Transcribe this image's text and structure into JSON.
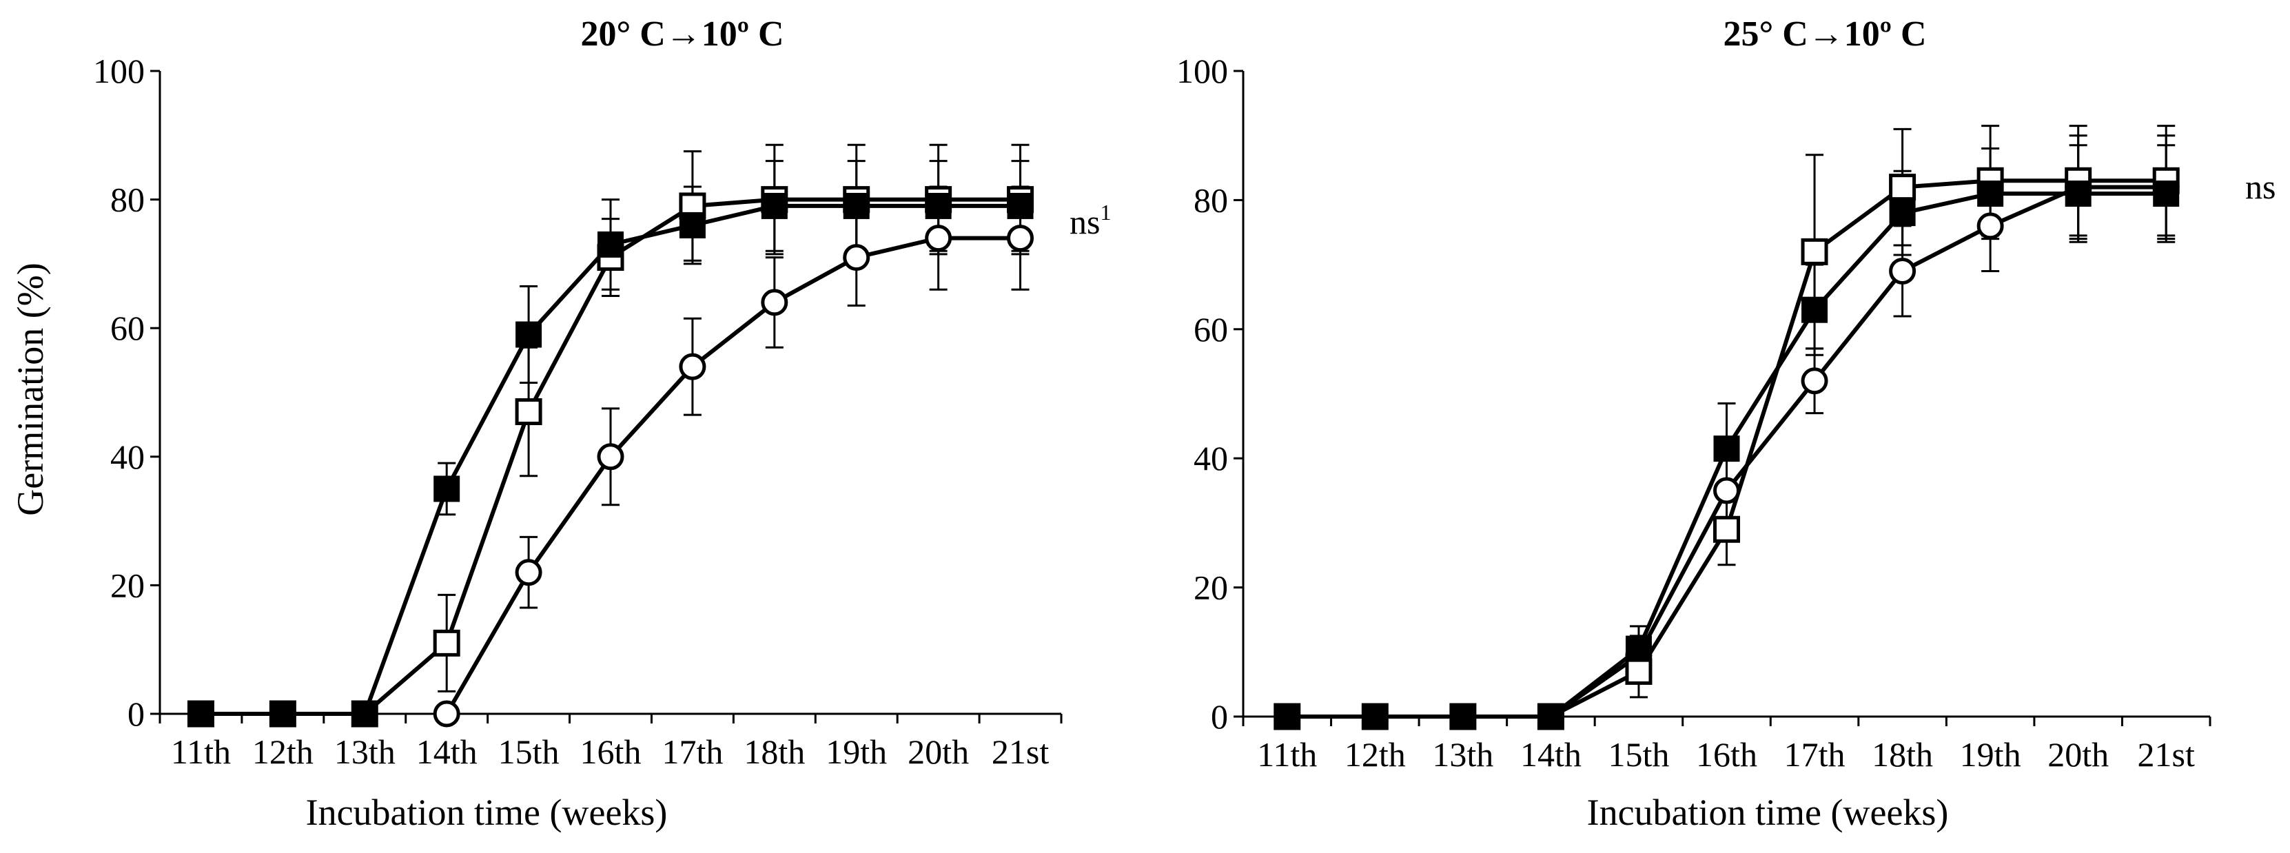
{
  "chart_data": [
    {
      "type": "line",
      "title": "20° C→10º C",
      "xlabel": "Incubation time (weeks)",
      "ylabel": "Germination  (%)",
      "categories": [
        "11th",
        "12th",
        "13th",
        "14th",
        "15th",
        "16th",
        "17th",
        "18th",
        "19th",
        "20th",
        "21st"
      ],
      "ylim": [
        0,
        100
      ],
      "yticks": [
        0,
        20,
        40,
        60,
        80,
        100
      ],
      "annotation": "ns",
      "annotation_superscript": "1",
      "series": [
        {
          "name": "filled square",
          "marker": "filled-square",
          "values": [
            0,
            0,
            0,
            35,
            59,
            73,
            76,
            79,
            79,
            79,
            79
          ],
          "errors": [
            0,
            0,
            0,
            4,
            7.5,
            7,
            6,
            7,
            7,
            7,
            7
          ]
        },
        {
          "name": "open square",
          "marker": "open-square",
          "values": [
            0,
            0,
            0,
            11,
            47,
            71,
            79,
            80,
            80,
            80,
            80
          ],
          "errors": [
            0,
            0,
            0,
            7.5,
            10,
            6,
            8.5,
            8.5,
            8.5,
            8.5,
            8.5
          ]
        },
        {
          "name": "open circle",
          "marker": "open-circle",
          "values": [
            null,
            null,
            null,
            0,
            22,
            40,
            54,
            64,
            71,
            74,
            74
          ],
          "errors": [
            0,
            0,
            0,
            0,
            5.5,
            7.5,
            7.5,
            7,
            7.5,
            8,
            8
          ]
        }
      ]
    },
    {
      "type": "line",
      "title": "25° C→10º C",
      "xlabel": "Incubation time (weeks)",
      "ylabel": "",
      "categories": [
        "11th",
        "12th",
        "13th",
        "14th",
        "15th",
        "16th",
        "17th",
        "18th",
        "19th",
        "20th",
        "21st"
      ],
      "ylim": [
        0,
        100
      ],
      "yticks": [
        0,
        20,
        40,
        60,
        80,
        100
      ],
      "annotation": "ns",
      "annotation_superscript": "",
      "series": [
        {
          "name": "filled square",
          "marker": "filled-square",
          "values": [
            0,
            0,
            0,
            0,
            10.5,
            41.5,
            63,
            78,
            81,
            81,
            81
          ],
          "errors": [
            0,
            0,
            0,
            0,
            3.5,
            7,
            7,
            6.5,
            7,
            7.5,
            7.5
          ]
        },
        {
          "name": "open square",
          "marker": "open-square",
          "values": [
            0,
            0,
            0,
            0,
            7,
            29,
            72,
            82,
            83,
            83,
            83
          ],
          "errors": [
            0,
            0,
            0,
            0,
            4,
            5.5,
            15,
            9,
            8.5,
            8.5,
            8.5
          ]
        },
        {
          "name": "open circle",
          "marker": "open-circle",
          "values": [
            null,
            null,
            null,
            0,
            9.5,
            35,
            52,
            69,
            76,
            82,
            82
          ],
          "errors": [
            0,
            0,
            0,
            0,
            3,
            5.5,
            5,
            7,
            7,
            8,
            8
          ]
        }
      ]
    }
  ]
}
